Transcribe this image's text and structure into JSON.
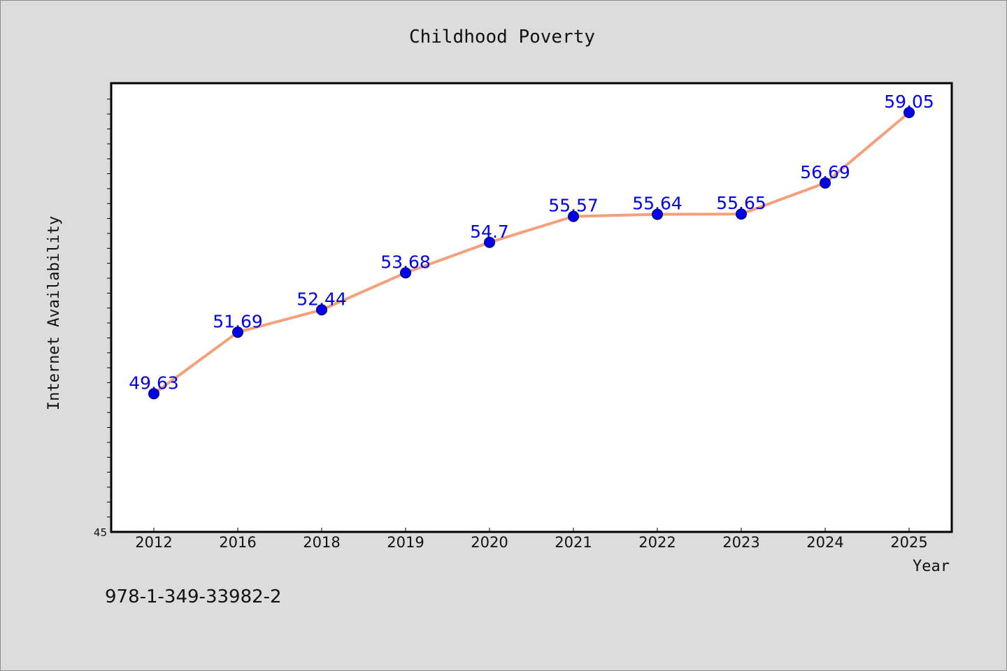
{
  "colors": {
    "background": "#dcdcdc",
    "plot_background": "#ffffff",
    "line": "#f4a07a",
    "marker": "#0000ee",
    "data_label": "#0000ee"
  },
  "chart_data": {
    "type": "line",
    "title": "Childhood Poverty",
    "xlabel": "Year",
    "ylabel": "Internet Availability",
    "categories": [
      "2012",
      "2016",
      "2018",
      "2019",
      "2020",
      "2021",
      "2022",
      "2023",
      "2024",
      "2025"
    ],
    "values": [
      49.63,
      51.69,
      52.44,
      53.68,
      54.7,
      55.57,
      55.64,
      55.65,
      56.69,
      59.05
    ],
    "data_labels": [
      "49.63",
      "51.69",
      "52.44",
      "53.68",
      "54.7",
      "55.57",
      "55.64",
      "55.65",
      "56.69",
      "59.05"
    ],
    "ylim": [
      45,
      60.1
    ],
    "yticks_labeled": [
      "45"
    ],
    "grid": false,
    "legend": "none"
  },
  "footer_text": "978-1-349-33982-2"
}
